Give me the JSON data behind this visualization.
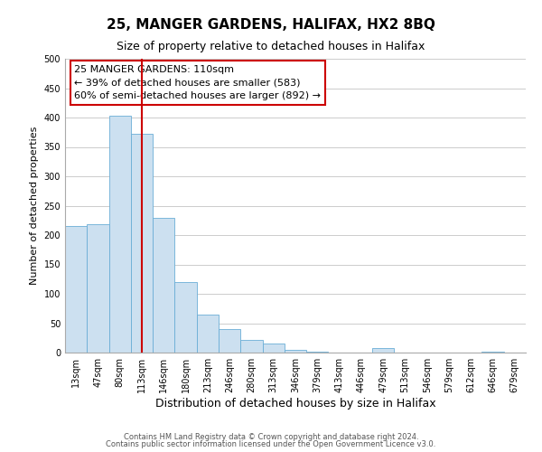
{
  "title": "25, MANGER GARDENS, HALIFAX, HX2 8BQ",
  "subtitle": "Size of property relative to detached houses in Halifax",
  "xlabel": "Distribution of detached houses by size in Halifax",
  "ylabel": "Number of detached properties",
  "bar_labels": [
    "13sqm",
    "47sqm",
    "80sqm",
    "113sqm",
    "146sqm",
    "180sqm",
    "213sqm",
    "246sqm",
    "280sqm",
    "313sqm",
    "346sqm",
    "379sqm",
    "413sqm",
    "446sqm",
    "479sqm",
    "513sqm",
    "546sqm",
    "579sqm",
    "612sqm",
    "646sqm",
    "679sqm"
  ],
  "bar_values": [
    215,
    218,
    403,
    372,
    230,
    120,
    65,
    40,
    22,
    15,
    5,
    2,
    0,
    0,
    8,
    0,
    0,
    0,
    0,
    2,
    0
  ],
  "bar_color": "#cce0f0",
  "bar_edge_color": "#6aaed6",
  "vline_x_index": 3,
  "vline_color": "#cc0000",
  "annotation_lines": [
    "25 MANGER GARDENS: 110sqm",
    "← 39% of detached houses are smaller (583)",
    "60% of semi-detached houses are larger (892) →"
  ],
  "ylim": [
    0,
    500
  ],
  "yticks": [
    0,
    50,
    100,
    150,
    200,
    250,
    300,
    350,
    400,
    450,
    500
  ],
  "footer1": "Contains HM Land Registry data © Crown copyright and database right 2024.",
  "footer2": "Contains public sector information licensed under the Open Government Licence v3.0.",
  "bg_color": "#ffffff",
  "grid_color": "#cccccc",
  "title_fontsize": 11,
  "subtitle_fontsize": 9,
  "ylabel_fontsize": 8,
  "xlabel_fontsize": 9,
  "tick_fontsize": 7,
  "annotation_fontsize": 8,
  "footer_fontsize": 6
}
